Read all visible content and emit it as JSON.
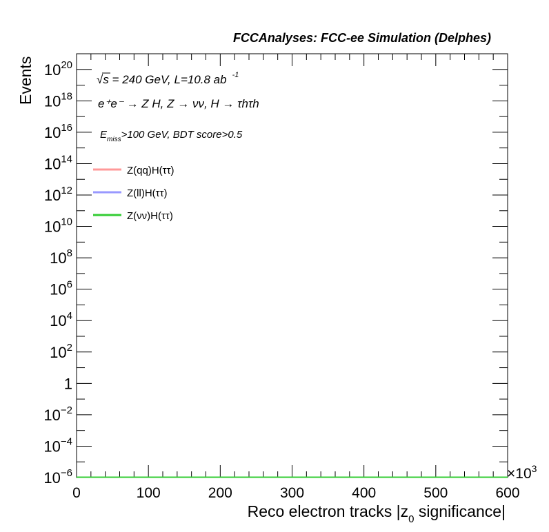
{
  "header": {
    "title": "FCCAnalyses: FCC-ee Simulation (Delphes)"
  },
  "annotations": {
    "energy": "√s = 240 GeV, L=10.8 ab",
    "energy_exp": "-1",
    "process": "e⁺e⁻ → Z H, Z → νν, H → τhτh",
    "selection_main": "E",
    "selection_sub": "miss",
    "selection_rest": ">100 GeV, BDT score>0.5"
  },
  "axes": {
    "multiplier_text": "×10",
    "multiplier_exp": "3"
  },
  "chart_data": {
    "type": "line",
    "title": "",
    "xlabel": "Reco electron tracks |z0 significance|",
    "ylabel": "Events",
    "xlim": [
      0,
      600000
    ],
    "ylim": [
      1e-06,
      1e+21
    ],
    "yscale": "log",
    "grid": false,
    "legend_position": "top-left",
    "x_ticks": [
      {
        "value": 0,
        "label": "0"
      },
      {
        "value": 100000,
        "label": "100"
      },
      {
        "value": 200000,
        "label": "200"
      },
      {
        "value": 300000,
        "label": "300"
      },
      {
        "value": 400000,
        "label": "400"
      },
      {
        "value": 500000,
        "label": "500"
      },
      {
        "value": 600000,
        "label": "600"
      }
    ],
    "y_ticks": [
      {
        "exp": -6,
        "base": "10",
        "sup": "−6"
      },
      {
        "exp": -4,
        "base": "10",
        "sup": "−4"
      },
      {
        "exp": -2,
        "base": "10",
        "sup": "−2"
      },
      {
        "exp": 0,
        "base": "1",
        "sup": ""
      },
      {
        "exp": 2,
        "base": "10",
        "sup": "2"
      },
      {
        "exp": 4,
        "base": "10",
        "sup": "4"
      },
      {
        "exp": 6,
        "base": "10",
        "sup": "6"
      },
      {
        "exp": 8,
        "base": "10",
        "sup": "8"
      },
      {
        "exp": 10,
        "base": "10",
        "sup": "10"
      },
      {
        "exp": 12,
        "base": "10",
        "sup": "12"
      },
      {
        "exp": 14,
        "base": "10",
        "sup": "14"
      },
      {
        "exp": 16,
        "base": "10",
        "sup": "16"
      },
      {
        "exp": 18,
        "base": "10",
        "sup": "18"
      },
      {
        "exp": 20,
        "base": "10",
        "sup": "20"
      }
    ],
    "series": [
      {
        "name": "Z(qq)H(ττ)",
        "color": "#ff9999",
        "x": [
          0,
          600000
        ],
        "y": [
          1e-06,
          1e-06
        ]
      },
      {
        "name": "Z(ll)H(ττ)",
        "color": "#9999ff",
        "x": [
          0,
          600000
        ],
        "y": [
          1e-06,
          1e-06
        ]
      },
      {
        "name": "Z(νν)H(ττ)",
        "color": "#33cc33",
        "x": [
          0,
          600000
        ],
        "y": [
          1e-06,
          1e-06
        ]
      }
    ]
  }
}
